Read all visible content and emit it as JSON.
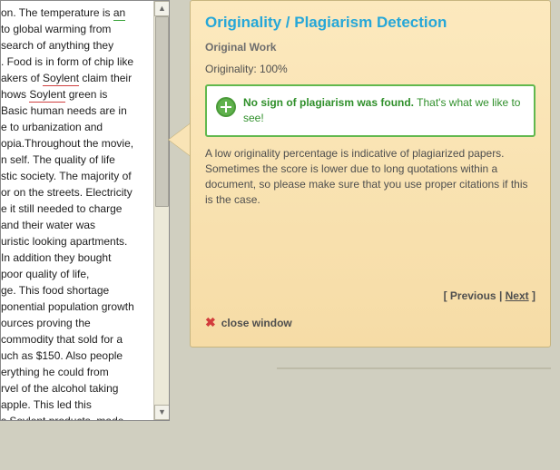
{
  "doc": {
    "lines": [
      {
        "plain": "on. The temperature is ",
        "marked": "an",
        "mark": "green"
      },
      {
        "plain": "to global warming from"
      },
      {
        "plain": " search of anything they"
      },
      {
        "plain": ". Food is in form of chip like"
      },
      {
        "plain": "akers of ",
        "marked": "Soylent",
        "mark": "red",
        "tail": " claim their"
      },
      {
        "plain": "hows ",
        "marked": "Soylent",
        "mark": "red",
        "tail": " green is"
      },
      {
        "plain": "Basic human needs are in"
      },
      {
        "plain": "e to urbanization and"
      },
      {
        "plain": "opia.Throughout the movie,"
      },
      {
        "plain": "n self.  The quality of life"
      },
      {
        "plain": "stic society. The majority of"
      },
      {
        "plain": "or on the streets. Electricity"
      },
      {
        "plain": "e it still needed to charge"
      },
      {
        "plain": "and their water was"
      },
      {
        "plain": "uristic looking apartments."
      },
      {
        "plain": "In addition they bought"
      },
      {
        "plain": "poor quality of life,"
      },
      {
        "plain": "ge. This food shortage"
      },
      {
        "plain": "ponential population growth"
      },
      {
        "plain": "ources proving the"
      },
      {
        "plain": " commodity that sold for a"
      },
      {
        "plain": "uch as $150.  Also people"
      },
      {
        "plain": "erything he could from"
      },
      {
        "plain": "rvel of the alcohol taking"
      },
      {
        "plain": " apple. This led this"
      },
      {
        "plain": "s ",
        "marked": "Soylent",
        "mark": "red",
        "tail": " products, made"
      }
    ]
  },
  "panel": {
    "title": "Originality / Plagiarism Detection",
    "subtitle": "Original Work",
    "orig_label": "Originality:",
    "orig_value": "100%",
    "result_bold": "No sign of plagiarism was found.",
    "result_tail": "That's what we like to see!",
    "note": "A low originality percentage is indicative of plagiarized papers. Sometimes the score is lower due to long quotations within a document, so please make sure that you use proper citations if this is the case.",
    "prev": "Previous",
    "next": "Next",
    "close": "close window"
  },
  "colors": {
    "accent": "#26a7d8",
    "success": "#61b84e",
    "success_text": "#2f8f2a",
    "danger": "#d23c3c",
    "panel_bg_top": "#fce9be",
    "panel_bg_bottom": "#f6dca6"
  }
}
